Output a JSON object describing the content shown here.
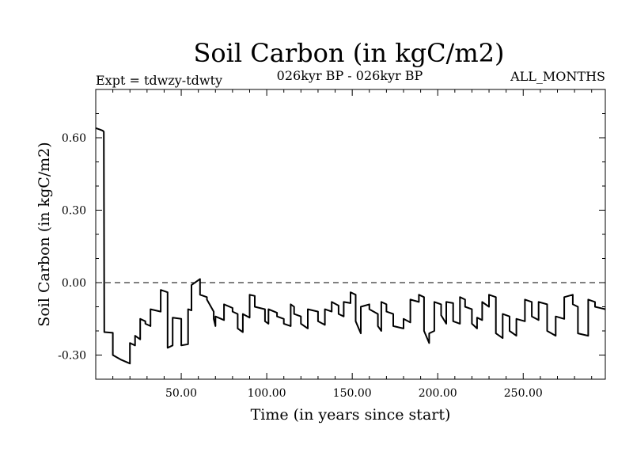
{
  "chart_data": {
    "type": "line",
    "title": "Soil Carbon (in kgC/m2)",
    "subtitle_left": "Expt = tdwzy-tdwty",
    "subtitle_center": "026kyr BP - 026kyr BP",
    "subtitle_right": "ALL_MONTHS",
    "xlabel": "Time (in years since start)",
    "ylabel": "Soil Carbon (in kgC/m2)",
    "xlim": [
      0,
      298
    ],
    "ylim": [
      -0.4,
      0.8
    ],
    "xticks": [
      50,
      100,
      150,
      200,
      250
    ],
    "xtick_labels": [
      "50.00",
      "100.00",
      "150.00",
      "200.00",
      "250.00"
    ],
    "yticks": [
      -0.3,
      0.0,
      0.3,
      0.6
    ],
    "ytick_labels": [
      "-0.30",
      "0.00",
      "0.30",
      "0.60"
    ],
    "zero_line": "dashed",
    "grid": false,
    "series": [
      {
        "x": [
          0,
          2,
          4,
          4.7,
          5,
          10,
          10,
          15,
          20,
          20,
          23,
          23,
          26,
          26,
          29,
          29,
          32,
          32,
          38,
          38,
          42,
          42,
          45,
          45,
          50,
          50,
          54,
          54,
          56,
          56,
          61,
          61,
          65,
          65,
          69,
          69,
          70,
          70,
          75,
          75,
          80,
          80,
          83,
          83,
          86,
          86,
          90,
          90,
          93,
          93,
          99,
          99,
          101,
          101,
          106,
          106,
          110,
          110,
          114,
          114,
          116,
          116,
          120,
          120,
          124,
          124,
          130,
          130,
          134,
          134,
          138,
          138,
          142,
          142,
          145,
          145,
          149,
          149,
          152,
          152,
          155,
          155,
          160,
          160,
          165,
          165,
          167,
          167,
          170,
          170,
          174,
          174,
          180,
          180,
          184,
          184,
          189,
          189,
          192,
          192,
          195,
          195,
          198,
          198,
          202,
          202,
          205,
          205,
          209,
          209,
          213,
          213,
          216,
          216,
          220,
          220,
          223,
          223,
          226,
          226,
          230,
          230,
          234,
          234,
          238,
          238,
          242,
          242,
          246,
          246,
          251,
          251,
          255,
          255,
          259,
          259,
          264,
          264,
          269,
          269,
          274,
          274,
          279,
          279,
          282,
          282,
          288,
          288,
          292,
          292,
          298
        ],
        "y": [
          0.64,
          0.635,
          0.63,
          0.625,
          -0.205,
          -0.208,
          -0.3,
          -0.32,
          -0.335,
          -0.25,
          -0.26,
          -0.22,
          -0.235,
          -0.15,
          -0.16,
          -0.17,
          -0.18,
          -0.11,
          -0.12,
          -0.03,
          -0.04,
          -0.27,
          -0.26,
          -0.145,
          -0.15,
          -0.26,
          -0.255,
          -0.11,
          -0.115,
          -0.01,
          0.015,
          -0.05,
          -0.06,
          -0.07,
          -0.12,
          -0.15,
          -0.18,
          -0.14,
          -0.155,
          -0.09,
          -0.105,
          -0.12,
          -0.13,
          -0.19,
          -0.205,
          -0.13,
          -0.145,
          -0.05,
          -0.055,
          -0.1,
          -0.11,
          -0.16,
          -0.17,
          -0.11,
          -0.125,
          -0.14,
          -0.15,
          -0.17,
          -0.18,
          -0.09,
          -0.1,
          -0.13,
          -0.14,
          -0.17,
          -0.19,
          -0.11,
          -0.12,
          -0.16,
          -0.175,
          -0.11,
          -0.12,
          -0.08,
          -0.095,
          -0.13,
          -0.14,
          -0.08,
          -0.085,
          -0.04,
          -0.05,
          -0.16,
          -0.21,
          -0.1,
          -0.09,
          -0.11,
          -0.13,
          -0.18,
          -0.2,
          -0.08,
          -0.09,
          -0.12,
          -0.13,
          -0.18,
          -0.19,
          -0.15,
          -0.165,
          -0.07,
          -0.08,
          -0.05,
          -0.06,
          -0.2,
          -0.25,
          -0.21,
          -0.2,
          -0.08,
          -0.09,
          -0.135,
          -0.17,
          -0.08,
          -0.085,
          -0.16,
          -0.17,
          -0.06,
          -0.07,
          -0.1,
          -0.11,
          -0.17,
          -0.19,
          -0.145,
          -0.155,
          -0.08,
          -0.1,
          -0.05,
          -0.06,
          -0.21,
          -0.23,
          -0.13,
          -0.14,
          -0.2,
          -0.22,
          -0.15,
          -0.16,
          -0.07,
          -0.08,
          -0.14,
          -0.155,
          -0.08,
          -0.09,
          -0.2,
          -0.22,
          -0.14,
          -0.15,
          -0.06,
          -0.05,
          -0.09,
          -0.1,
          -0.21,
          -0.22,
          -0.07,
          -0.08,
          -0.1,
          -0.11
        ]
      }
    ]
  }
}
